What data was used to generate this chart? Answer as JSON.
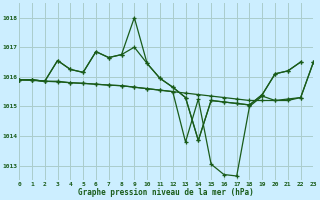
{
  "background_color": "#cceeff",
  "grid_color": "#aacccc",
  "line_color": "#1a5c1a",
  "title": "Graphe pression niveau de la mer (hPa)",
  "xlim": [
    0,
    23
  ],
  "ylim": [
    1012.5,
    1018.5
  ],
  "yticks": [
    1013,
    1014,
    1015,
    1016,
    1017,
    1018
  ],
  "xticks": [
    0,
    1,
    2,
    3,
    4,
    5,
    6,
    7,
    8,
    9,
    10,
    11,
    12,
    13,
    14,
    15,
    16,
    17,
    18,
    19,
    20,
    21,
    22,
    23
  ],
  "s1_x": [
    0,
    1,
    2,
    3,
    4,
    5,
    6,
    7,
    8,
    9,
    10,
    11,
    12,
    13,
    14,
    15,
    16,
    17,
    18,
    19,
    20,
    21,
    22
  ],
  "s1_y": [
    1015.9,
    1015.9,
    1015.85,
    1016.55,
    1016.25,
    1016.15,
    1016.85,
    1016.65,
    1016.75,
    1018.0,
    1016.45,
    1015.95,
    1015.65,
    1015.3,
    1013.85,
    1015.2,
    1015.15,
    1015.1,
    1015.05,
    1015.4,
    1016.1,
    1016.2,
    1016.5
  ],
  "s2_x": [
    0,
    1,
    2,
    3,
    4,
    5,
    6,
    7,
    8,
    9,
    10,
    11,
    12,
    13,
    14,
    15,
    16,
    17,
    18,
    19,
    20,
    21,
    22
  ],
  "s2_y": [
    1015.9,
    1015.9,
    1015.85,
    1016.55,
    1016.25,
    1016.15,
    1016.85,
    1016.65,
    1016.75,
    1017.0,
    1016.45,
    1015.95,
    1015.65,
    1015.3,
    1013.85,
    1015.2,
    1015.15,
    1015.1,
    1015.05,
    1015.4,
    1016.1,
    1016.2,
    1016.5
  ],
  "s3_x": [
    0,
    1,
    2,
    3,
    4,
    5,
    6,
    7,
    8,
    9,
    10,
    11,
    12,
    13,
    14,
    15,
    16,
    17,
    18,
    19,
    20,
    21,
    22,
    23
  ],
  "s3_y": [
    1015.9,
    1015.9,
    1015.85,
    1015.85,
    1015.8,
    1015.78,
    1015.75,
    1015.72,
    1015.7,
    1015.65,
    1015.6,
    1015.55,
    1015.5,
    1013.8,
    1015.25,
    1013.05,
    1012.7,
    1012.65,
    1015.0,
    1015.35,
    1015.2,
    1015.2,
    1015.3,
    1016.5
  ],
  "s4_x": [
    0,
    1,
    2,
    3,
    4,
    5,
    6,
    7,
    8,
    9,
    10,
    11,
    12,
    13,
    14,
    15,
    16,
    17,
    18,
    19,
    20,
    21,
    22,
    23
  ],
  "s4_y": [
    1015.9,
    1015.88,
    1015.85,
    1015.83,
    1015.8,
    1015.78,
    1015.75,
    1015.72,
    1015.7,
    1015.65,
    1015.6,
    1015.55,
    1015.5,
    1015.45,
    1015.4,
    1015.35,
    1015.3,
    1015.25,
    1015.2,
    1015.2,
    1015.2,
    1015.25,
    1015.3,
    1016.5
  ]
}
